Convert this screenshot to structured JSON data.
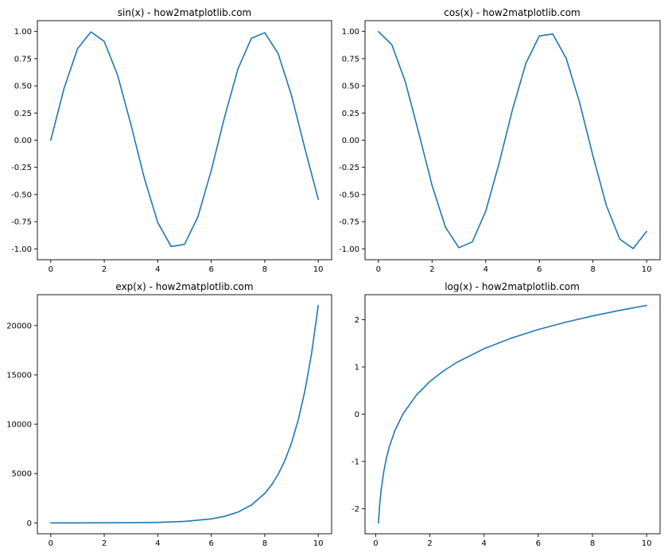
{
  "figure": {
    "background": "#ffffff"
  },
  "chart_data": [
    {
      "type": "line",
      "title": "sin(x) - how2matplotlib.com",
      "xlabel": "",
      "ylabel": "",
      "xlim": [
        -0.5,
        10.5
      ],
      "ylim": [
        -1.1,
        1.1
      ],
      "xticks": [
        0,
        2,
        4,
        6,
        8,
        10
      ],
      "xtick_labels": [
        "0",
        "2",
        "4",
        "6",
        "8",
        "10"
      ],
      "yticks": [
        -1.0,
        -0.75,
        -0.5,
        -0.25,
        0.0,
        0.25,
        0.5,
        0.75,
        1.0
      ],
      "ytick_labels": [
        "-1.00",
        "-0.75",
        "-0.50",
        "-0.25",
        "0.00",
        "0.25",
        "0.50",
        "0.75",
        "1.00"
      ],
      "grid": false,
      "series": [
        {
          "color": "#1f77b4",
          "x": [
            0,
            0.5,
            1,
            1.5,
            2,
            2.5,
            3,
            3.5,
            4,
            4.5,
            5,
            5.5,
            6,
            6.5,
            7,
            7.5,
            8,
            8.5,
            9,
            9.5,
            10
          ],
          "y": [
            0,
            0.479,
            0.841,
            0.997,
            0.909,
            0.598,
            0.141,
            -0.351,
            -0.757,
            -0.978,
            -0.959,
            -0.706,
            -0.279,
            0.215,
            0.657,
            0.938,
            0.989,
            0.798,
            0.412,
            -0.075,
            -0.544
          ]
        }
      ]
    },
    {
      "type": "line",
      "title": "cos(x) - how2matplotlib.com",
      "xlabel": "",
      "ylabel": "",
      "xlim": [
        -0.5,
        10.5
      ],
      "ylim": [
        -1.1,
        1.1
      ],
      "xticks": [
        0,
        2,
        4,
        6,
        8,
        10
      ],
      "xtick_labels": [
        "0",
        "2",
        "4",
        "6",
        "8",
        "10"
      ],
      "yticks": [
        -1.0,
        -0.75,
        -0.5,
        -0.25,
        0.0,
        0.25,
        0.5,
        0.75,
        1.0
      ],
      "ytick_labels": [
        "-1.00",
        "-0.75",
        "-0.50",
        "-0.25",
        "0.00",
        "0.25",
        "0.50",
        "0.75",
        "1.00"
      ],
      "grid": false,
      "series": [
        {
          "color": "#1f77b4",
          "x": [
            0,
            0.5,
            1,
            1.5,
            2,
            2.5,
            3,
            3.5,
            4,
            4.5,
            5,
            5.5,
            6,
            6.5,
            7,
            7.5,
            8,
            8.5,
            9,
            9.5,
            10
          ],
          "y": [
            1,
            0.878,
            0.54,
            0.071,
            -0.416,
            -0.801,
            -0.99,
            -0.936,
            -0.654,
            -0.211,
            0.284,
            0.709,
            0.96,
            0.977,
            0.754,
            0.347,
            -0.146,
            -0.602,
            -0.911,
            -0.997,
            -0.839
          ]
        }
      ]
    },
    {
      "type": "line",
      "title": "exp(x) - how2matplotlib.com",
      "xlabel": "",
      "ylabel": "",
      "xlim": [
        -0.5,
        10.5
      ],
      "ylim": [
        -1101,
        23128
      ],
      "xticks": [
        0,
        2,
        4,
        6,
        8,
        10
      ],
      "xtick_labels": [
        "0",
        "2",
        "4",
        "6",
        "8",
        "10"
      ],
      "yticks": [
        0,
        5000,
        10000,
        15000,
        20000
      ],
      "ytick_labels": [
        "0",
        "5000",
        "10000",
        "15000",
        "20000"
      ],
      "grid": false,
      "series": [
        {
          "color": "#1f77b4",
          "x": [
            0,
            1,
            2,
            3,
            4,
            5,
            6,
            6.5,
            7,
            7.5,
            8,
            8.25,
            8.5,
            8.75,
            9,
            9.25,
            9.5,
            9.75,
            10
          ],
          "y": [
            1,
            2.7,
            7.4,
            20.1,
            54.6,
            148.4,
            403.4,
            665,
            1096.6,
            1808,
            2981,
            3827,
            4915,
            6311,
            8103,
            10405,
            13360,
            17154,
            22026
          ]
        }
      ]
    },
    {
      "type": "line",
      "title": "log(x) - how2matplotlib.com",
      "xlabel": "",
      "ylabel": "",
      "xlim": [
        -0.395,
        10.495
      ],
      "ylim": [
        -2.53,
        2.53
      ],
      "xticks": [
        0,
        2,
        4,
        6,
        8,
        10
      ],
      "xtick_labels": [
        "0",
        "2",
        "4",
        "6",
        "8",
        "10"
      ],
      "yticks": [
        -2,
        -1,
        0,
        1,
        2
      ],
      "ytick_labels": [
        "-2",
        "-1",
        "0",
        "1",
        "2"
      ],
      "grid": false,
      "series": [
        {
          "color": "#1f77b4",
          "x": [
            0.1,
            0.15,
            0.2,
            0.3,
            0.4,
            0.5,
            0.7,
            1,
            1.5,
            2,
            2.5,
            3,
            4,
            5,
            6,
            7,
            8,
            9,
            10
          ],
          "y": [
            -2.303,
            -1.897,
            -1.609,
            -1.204,
            -0.916,
            -0.693,
            -0.357,
            0,
            0.405,
            0.693,
            0.916,
            1.099,
            1.386,
            1.609,
            1.792,
            1.946,
            2.079,
            2.197,
            2.303
          ]
        }
      ]
    }
  ]
}
